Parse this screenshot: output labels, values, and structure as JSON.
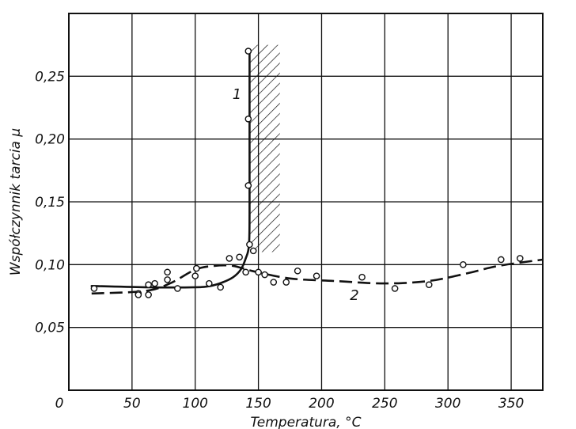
{
  "chart_data": {
    "type": "line",
    "xlabel": "Temperatura, °C",
    "ylabel": "Współczynnik tarcia μ",
    "xlim": [
      0,
      375
    ],
    "ylim": [
      0,
      0.3
    ],
    "x_ticks": [
      0,
      50,
      100,
      150,
      200,
      250,
      300,
      350
    ],
    "x_tick_labels": [
      "0",
      "50",
      "100",
      "150",
      "200",
      "250",
      "300",
      "350"
    ],
    "y_ticks": [
      0.05,
      0.1,
      0.15,
      0.2,
      0.25
    ],
    "y_tick_labels": [
      "0,05",
      "0,10",
      "0,15",
      "0,20",
      "0,25"
    ],
    "grid": true,
    "hatched_band": {
      "x": [
        143,
        167
      ],
      "y": [
        0.11,
        0.275
      ]
    },
    "series": [
      {
        "name": "1",
        "style": "solid",
        "curve": [
          [
            18,
            0.083
          ],
          [
            60,
            0.082
          ],
          [
            100,
            0.082
          ],
          [
            112,
            0.083
          ],
          [
            122,
            0.086
          ],
          [
            130,
            0.09
          ],
          [
            136,
            0.096
          ],
          [
            140,
            0.105
          ],
          [
            142.5,
            0.115
          ],
          [
            143,
            0.14
          ],
          [
            143,
            0.2
          ],
          [
            143,
            0.27
          ]
        ],
        "points": [
          [
            20,
            0.081
          ],
          [
            55,
            0.077
          ],
          [
            63,
            0.076
          ],
          [
            68,
            0.085
          ],
          [
            78,
            0.094
          ],
          [
            86,
            0.081
          ],
          [
            101,
            0.097
          ],
          [
            111,
            0.085
          ],
          [
            120,
            0.082
          ],
          [
            142,
            0.27
          ],
          [
            142,
            0.216
          ],
          [
            142,
            0.163
          ],
          [
            143,
            0.116
          ]
        ]
      },
      {
        "name": "2",
        "style": "dashed",
        "curve": [
          [
            18,
            0.077
          ],
          [
            60,
            0.079
          ],
          [
            80,
            0.085
          ],
          [
            100,
            0.096
          ],
          [
            115,
            0.099
          ],
          [
            130,
            0.099
          ],
          [
            145,
            0.095
          ],
          [
            175,
            0.089
          ],
          [
            210,
            0.087
          ],
          [
            250,
            0.085
          ],
          [
            285,
            0.087
          ],
          [
            315,
            0.093
          ],
          [
            340,
            0.099
          ],
          [
            375,
            0.104
          ]
        ],
        "points": [
          [
            55,
            0.076
          ],
          [
            63,
            0.084
          ],
          [
            78,
            0.088
          ],
          [
            100,
            0.091
          ],
          [
            127,
            0.105
          ],
          [
            135,
            0.106
          ],
          [
            140,
            0.094
          ],
          [
            146,
            0.111
          ],
          [
            150,
            0.094
          ],
          [
            155,
            0.092
          ],
          [
            162,
            0.086
          ],
          [
            172,
            0.086
          ],
          [
            181,
            0.095
          ],
          [
            196,
            0.091
          ],
          [
            232,
            0.09
          ],
          [
            258,
            0.081
          ],
          [
            285,
            0.084
          ],
          [
            312,
            0.1
          ],
          [
            342,
            0.104
          ],
          [
            357,
            0.105
          ]
        ]
      }
    ]
  }
}
